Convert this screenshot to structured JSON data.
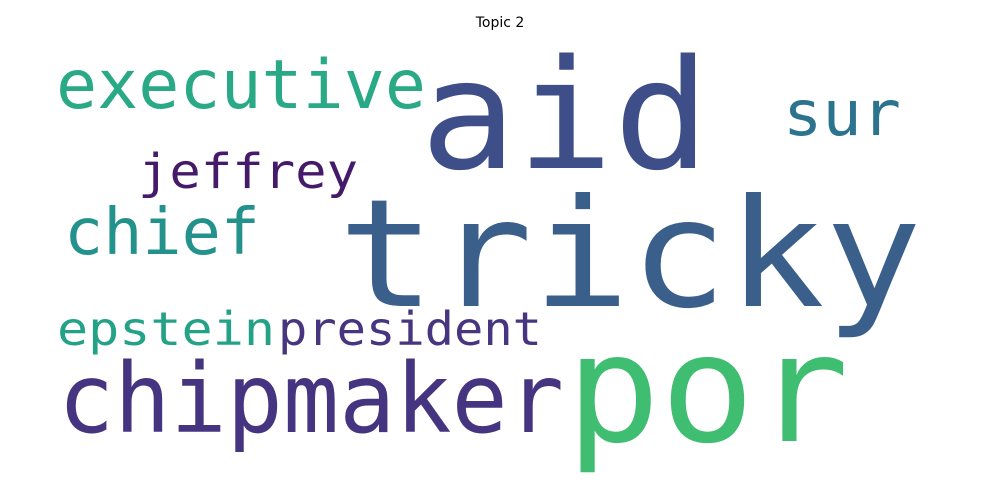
{
  "title": "Topic 2",
  "words": [
    {
      "text": "aid",
      "color": "#3e4e89"
    },
    {
      "text": "tricky",
      "color": "#3b5f8b"
    },
    {
      "text": "por",
      "color": "#3fbd71"
    },
    {
      "text": "executive",
      "color": "#2aa986"
    },
    {
      "text": "sur",
      "color": "#2c738e"
    },
    {
      "text": "jeffrey",
      "color": "#451a6a"
    },
    {
      "text": "chief",
      "color": "#23918c"
    },
    {
      "text": "epstein",
      "color": "#23a288"
    },
    {
      "text": "president",
      "color": "#47367f"
    },
    {
      "text": "chipmaker",
      "color": "#453580"
    }
  ]
}
